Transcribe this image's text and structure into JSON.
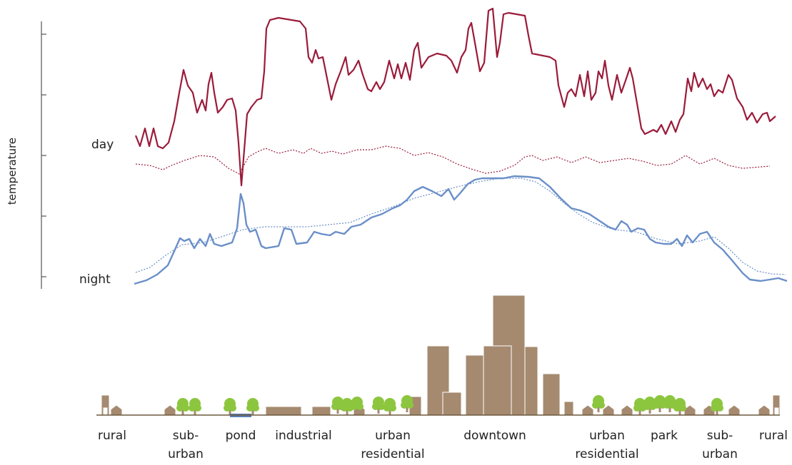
{
  "diagram": {
    "y_axis_label": "temperature",
    "series_labels": [
      "day",
      "night"
    ],
    "zones": [
      [
        "rural"
      ],
      [
        "sub-",
        "urban"
      ],
      [
        "pond"
      ],
      [
        "industrial"
      ],
      [
        "urban",
        "residential"
      ],
      [
        "downtown"
      ],
      [
        "urban",
        "residential"
      ],
      [
        "park"
      ],
      [
        "sub-",
        "urban"
      ],
      [
        "rural"
      ]
    ]
  }
}
